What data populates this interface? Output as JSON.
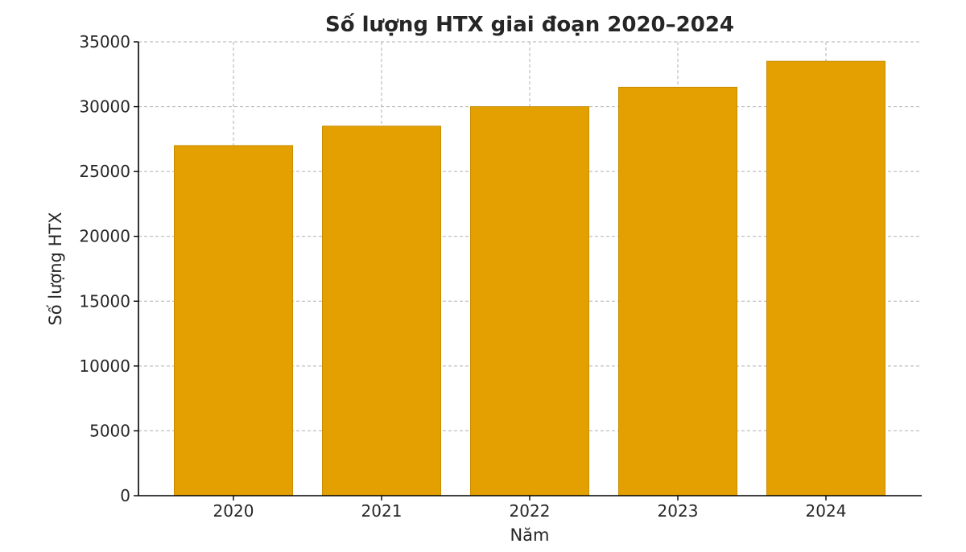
{
  "chart_data": {
    "type": "bar",
    "title": "Số lượng HTX giai đoạn 2020–2024",
    "xlabel": "Năm",
    "ylabel": "Số lượng HTX",
    "categories": [
      "2020",
      "2021",
      "2022",
      "2023",
      "2024"
    ],
    "values": [
      27000,
      28500,
      30000,
      31500,
      33500
    ],
    "ylim": [
      0,
      35000
    ],
    "yticks": [
      0,
      5000,
      10000,
      15000,
      20000,
      25000,
      30000,
      35000
    ],
    "ytick_labels": [
      "0",
      "5000",
      "10000",
      "15000",
      "20000",
      "25000",
      "30000",
      "35000"
    ],
    "grid": true,
    "bar_color": "#e3a000",
    "bar_edge_color": "#c78c00"
  }
}
